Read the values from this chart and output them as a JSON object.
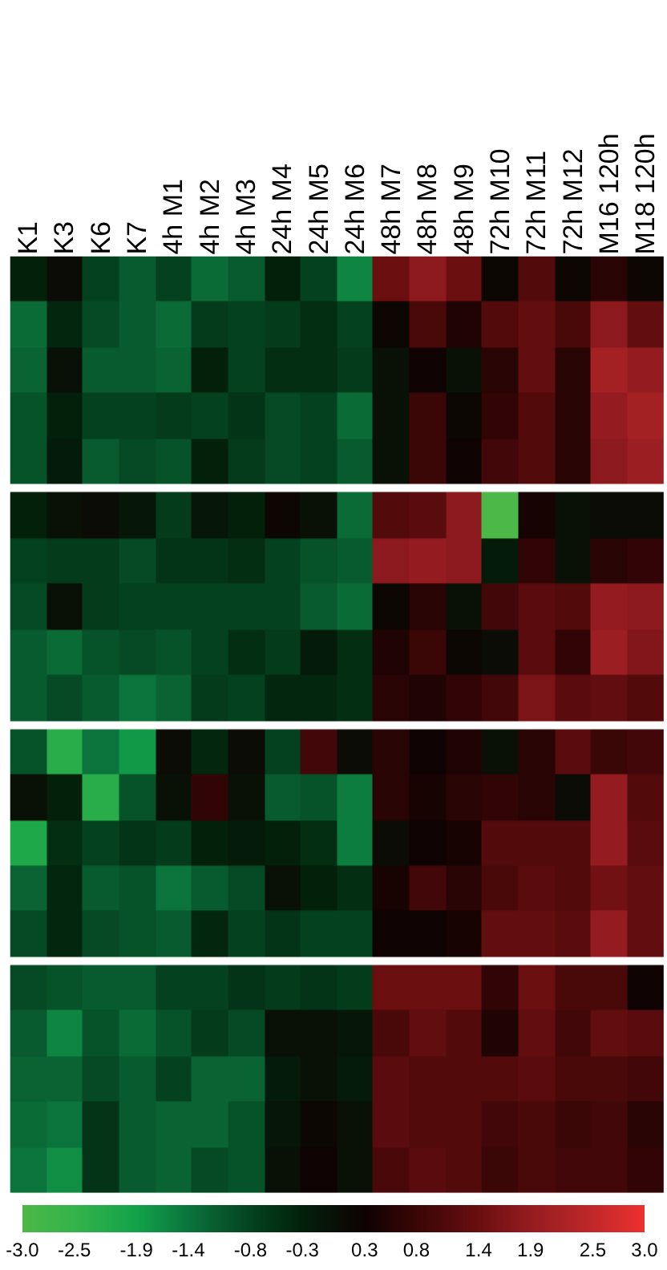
{
  "chart_data": {
    "type": "heatmap",
    "clim": [
      -3.0,
      3.0
    ],
    "cticks": [
      {
        "value": -3.0,
        "label": "-3.0"
      },
      -2.5,
      -1.9,
      -1.4,
      -0.8,
      -0.3,
      0.3,
      0.8,
      1.4,
      1.9,
      2.5,
      {
        "value": 3.0,
        "label": "3.0"
      }
    ],
    "categories": [
      "K1",
      "K3",
      "K6",
      "K7",
      "4h M1",
      "4h M2",
      "4h M3",
      "24h M4",
      "24h M5",
      "24h M6",
      "48h M7",
      "48h M8",
      "48h M9",
      "72h M10",
      "72h M11",
      "72h M12",
      "M16 120h",
      "M18 120h"
    ],
    "y_categories": [
      null,
      null,
      null,
      null,
      null,
      null,
      null,
      null,
      null,
      null,
      null,
      null,
      null,
      null,
      null,
      null,
      null,
      null,
      null,
      null
    ],
    "cells": [
      [
        -0.3,
        0.1,
        -0.8,
        -1.1,
        -0.8,
        -1.3,
        -1.1,
        -0.3,
        -0.8,
        -1.6,
        1.4,
        1.8,
        1.4,
        0.2,
        1.1,
        0.2,
        0.6,
        0.2
      ],
      [
        -1.3,
        -0.4,
        -0.9,
        -1.1,
        -1.3,
        -0.7,
        -0.8,
        -0.7,
        -0.5,
        -0.8,
        0.2,
        1.0,
        0.5,
        1.1,
        1.3,
        1.0,
        1.8,
        1.3
      ],
      [
        -1.2,
        0.0,
        -1.1,
        -1.1,
        -1.2,
        -0.3,
        -0.8,
        -0.5,
        -0.5,
        -0.7,
        0.0,
        0.3,
        0.0,
        0.6,
        1.3,
        0.6,
        2.1,
        1.9
      ],
      [
        -1.0,
        -0.3,
        -0.8,
        -0.8,
        -0.7,
        -0.8,
        -0.6,
        -0.9,
        -0.8,
        -1.3,
        0.0,
        0.8,
        0.2,
        0.7,
        1.1,
        0.6,
        1.9,
        2.1
      ],
      [
        -1.0,
        -0.2,
        -1.1,
        -0.9,
        -1.0,
        -0.3,
        -0.7,
        -0.9,
        -0.8,
        -1.1,
        0.0,
        0.8,
        0.3,
        0.9,
        1.1,
        0.6,
        1.8,
        2.0
      ],
      [
        -0.3,
        0.0,
        0.1,
        -0.1,
        -0.7,
        -0.1,
        -0.3,
        0.2,
        0.0,
        -1.3,
        1.1,
        1.2,
        1.8,
        -3.0,
        0.4,
        0.0,
        0.1,
        0.1
      ],
      [
        -0.8,
        -0.7,
        -0.7,
        -0.9,
        -0.6,
        -0.6,
        -0.5,
        -0.8,
        -1.0,
        -1.1,
        1.8,
        1.9,
        1.8,
        -0.2,
        0.7,
        0.0,
        0.6,
        0.7
      ],
      [
        -0.9,
        0.0,
        -0.7,
        -0.8,
        -0.8,
        -0.8,
        -0.8,
        -0.8,
        -1.1,
        -1.3,
        0.2,
        0.6,
        0.0,
        0.9,
        1.2,
        1.1,
        1.9,
        1.8
      ],
      [
        -1.1,
        -1.3,
        -1.0,
        -0.9,
        -1.0,
        -0.8,
        -0.5,
        -0.7,
        -0.2,
        -0.5,
        0.5,
        0.8,
        0.2,
        0.1,
        1.2,
        0.7,
        2.0,
        1.7
      ],
      [
        -1.1,
        -0.9,
        -1.1,
        -1.4,
        -1.2,
        -0.7,
        -0.8,
        -0.4,
        -0.4,
        -0.5,
        0.6,
        0.5,
        0.7,
        0.9,
        1.6,
        1.2,
        1.3,
        1.1
      ],
      [
        -1.0,
        -2.3,
        -1.4,
        -1.8,
        0.1,
        -0.4,
        0.1,
        -0.8,
        0.9,
        0.1,
        0.6,
        0.3,
        0.5,
        0.0,
        0.6,
        1.2,
        0.8,
        0.9
      ],
      [
        0.0,
        -0.3,
        -2.3,
        -1.0,
        0.0,
        0.7,
        0.0,
        -1.1,
        -1.0,
        -1.5,
        0.6,
        0.4,
        0.6,
        0.7,
        0.6,
        0.1,
        1.9,
        1.1
      ],
      [
        -2.1,
        -0.5,
        -0.8,
        -0.6,
        -0.7,
        -0.3,
        -0.2,
        -0.3,
        -0.5,
        -1.5,
        0.1,
        0.3,
        0.4,
        1.1,
        1.1,
        1.1,
        1.9,
        1.2
      ],
      [
        -1.2,
        -0.4,
        -1.1,
        -1.0,
        -1.4,
        -1.1,
        -0.9,
        0.0,
        -0.3,
        -0.5,
        0.4,
        0.9,
        0.6,
        1.0,
        1.2,
        1.1,
        1.5,
        1.3
      ],
      [
        -0.9,
        -0.4,
        -0.9,
        -1.0,
        -1.1,
        -0.4,
        -0.8,
        -0.6,
        -0.8,
        -0.8,
        0.3,
        0.3,
        0.4,
        1.3,
        1.3,
        1.2,
        1.9,
        1.3
      ],
      [
        -0.9,
        -1.0,
        -1.1,
        -1.1,
        -0.8,
        -0.8,
        -0.6,
        -0.7,
        -0.6,
        -0.7,
        1.4,
        1.4,
        1.4,
        0.7,
        1.4,
        1.0,
        1.0,
        0.3
      ],
      [
        -1.1,
        -1.6,
        -1.0,
        -1.3,
        -1.0,
        -0.7,
        -0.9,
        0.0,
        0.0,
        -0.1,
        1.0,
        1.3,
        1.1,
        0.5,
        1.3,
        0.9,
        1.3,
        1.2
      ],
      [
        -1.2,
        -1.2,
        -0.9,
        -1.1,
        -0.8,
        -1.2,
        -1.2,
        -0.2,
        0.0,
        -0.2,
        1.2,
        1.1,
        1.1,
        1.1,
        1.2,
        1.0,
        1.0,
        0.9
      ],
      [
        -1.3,
        -1.4,
        -0.6,
        -1.1,
        -1.2,
        -1.2,
        -1.0,
        -0.1,
        0.2,
        0.0,
        1.2,
        1.1,
        1.1,
        0.9,
        1.0,
        0.8,
        0.9,
        0.6
      ],
      [
        -1.4,
        -1.7,
        -0.6,
        -1.1,
        -1.2,
        -0.9,
        -1.0,
        0.0,
        0.3,
        0.0,
        1.0,
        1.2,
        1.1,
        0.8,
        1.0,
        0.9,
        0.9,
        0.7
      ]
    ]
  }
}
